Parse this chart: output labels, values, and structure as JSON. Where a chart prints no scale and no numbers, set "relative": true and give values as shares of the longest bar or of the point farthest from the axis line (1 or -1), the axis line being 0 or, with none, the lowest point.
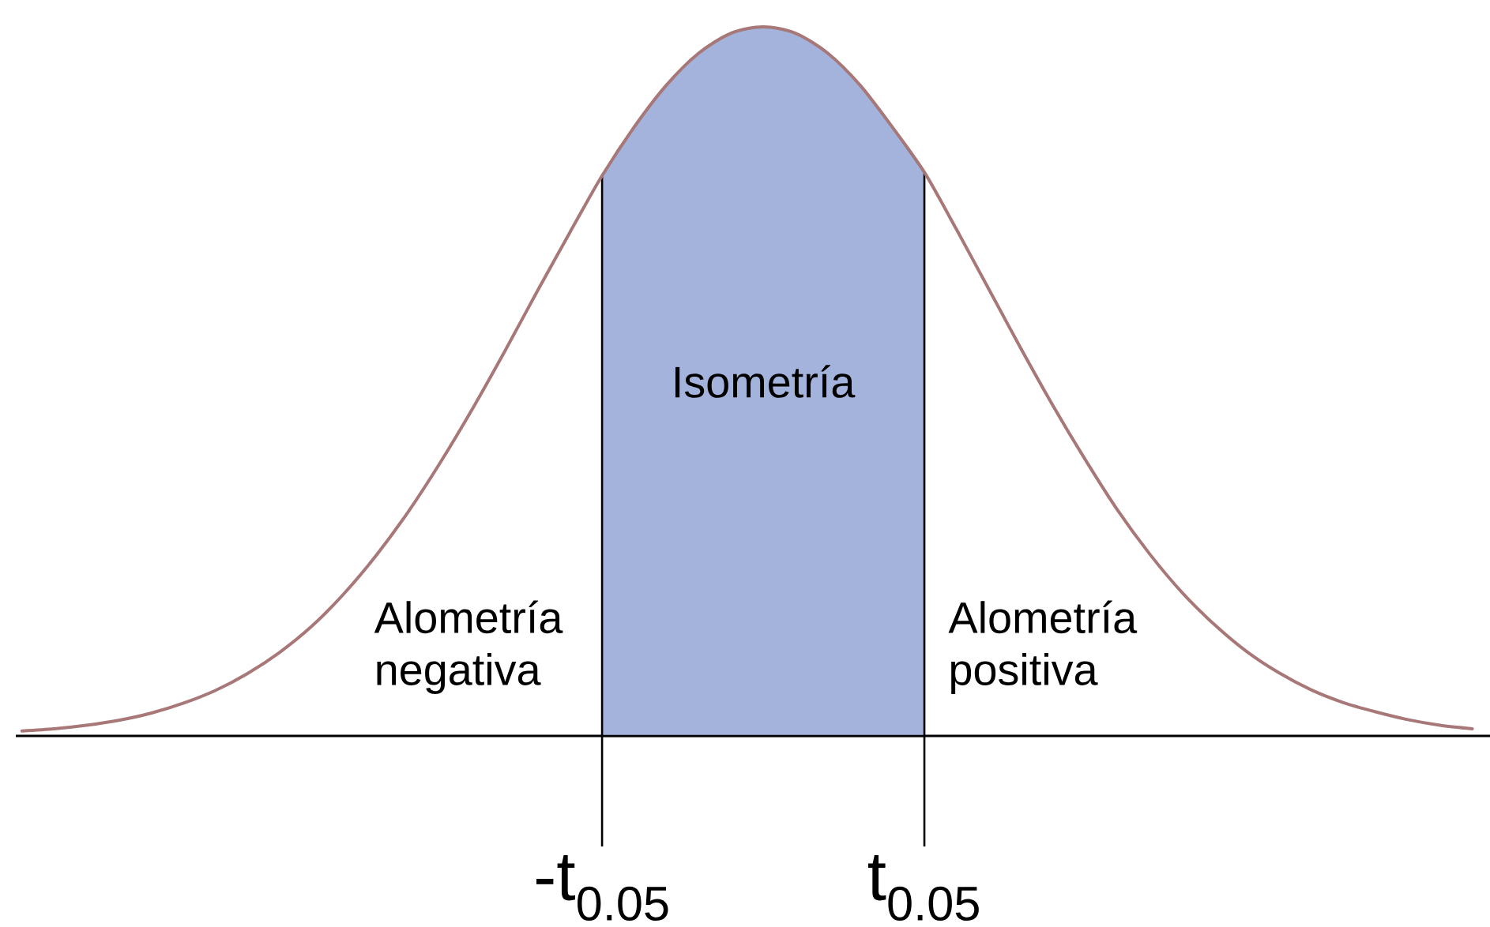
{
  "chart_data": {
    "type": "line",
    "relative": true,
    "categories": [
      null,
      null,
      null,
      null,
      null,
      null,
      null,
      null,
      null,
      null,
      null,
      null,
      null,
      null,
      null,
      null,
      null,
      null,
      "-t$_{0.05}$",
      null,
      null,
      null,
      null,
      null,
      null,
      null,
      null,
      null,
      "t$_{0.05}$",
      null,
      null,
      null,
      null,
      null,
      null,
      null,
      null,
      null,
      null,
      null,
      null,
      null,
      null,
      null,
      null,
      null
    ],
    "series": [
      {
        "type": "area",
        "name": "Isometría",
        "color": "#a3b3db",
        "values": [
          null,
          null,
          null,
          null,
          null,
          null,
          null,
          null,
          null,
          null,
          null,
          null,
          null,
          null,
          null,
          null,
          null,
          null,
          0.79,
          0.859,
          0.918,
          0.963,
          0.991,
          1,
          0.991,
          0.963,
          0.918,
          0.859,
          0.795,
          null,
          null,
          null,
          null,
          null,
          null,
          null,
          null,
          null,
          null,
          null,
          null,
          null,
          null,
          null,
          null,
          null
        ]
      },
      {
        "color": "#a87878",
        "values": [
          0.007,
          0.01,
          0.015,
          0.022,
          0.032,
          0.046,
          0.064,
          0.088,
          0.118,
          0.155,
          0.201,
          0.255,
          0.317,
          0.387,
          0.463,
          0.544,
          0.628,
          0.71,
          0.79,
          0.859,
          0.918,
          0.963,
          0.991,
          1,
          0.991,
          0.963,
          0.918,
          0.859,
          0.795,
          0.714,
          0.63,
          0.546,
          0.465,
          0.389,
          0.318,
          0.256,
          0.202,
          0.157,
          0.119,
          0.089,
          0.065,
          0.047,
          0.034,
          0.023,
          0.015,
          0.01
        ]
      }
    ],
    "annotations": [
      "Alometría negativa",
      "Alometría positiva"
    ]
  }
}
